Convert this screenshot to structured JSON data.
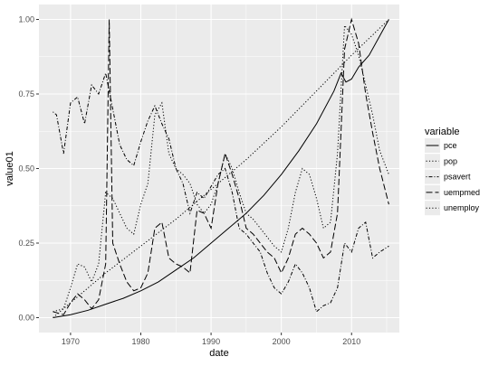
{
  "chart_data": {
    "type": "line",
    "title": "",
    "xlabel": "date",
    "ylabel": "value01",
    "xlim": [
      1965.5,
      2016.8
    ],
    "ylim": [
      -0.05,
      1.05
    ],
    "x_ticks": [
      1970,
      1980,
      1990,
      2000,
      2010
    ],
    "x_tick_labels": [
      "1970",
      "1980",
      "1990",
      "2000",
      "2010"
    ],
    "y_ticks": [
      0,
      0.25,
      0.5,
      0.75,
      1
    ],
    "y_tick_labels": [
      "0.00",
      "0.25",
      "0.50",
      "0.75",
      "1.00"
    ],
    "grid": true,
    "legend_position": "right",
    "legend_title": "variable",
    "colors": {
      "panel": "#ebebeb",
      "grid": "#ffffff",
      "line": "#000000",
      "text": "#4d4d4d"
    },
    "series": [
      {
        "name": "pce",
        "dash": "solid",
        "x": [
          1967.5,
          1970,
          1972.5,
          1975,
          1977.5,
          1980,
          1982.5,
          1985,
          1987.5,
          1990,
          1992.5,
          1995,
          1997.5,
          2000,
          2002.5,
          2005,
          2007.5,
          2008.5,
          2009.2,
          2010,
          2011,
          2012.5,
          2015.3
        ],
        "y": [
          0.0,
          0.01,
          0.025,
          0.045,
          0.065,
          0.09,
          0.12,
          0.16,
          0.2,
          0.25,
          0.3,
          0.35,
          0.41,
          0.48,
          0.56,
          0.65,
          0.76,
          0.82,
          0.79,
          0.8,
          0.84,
          0.88,
          1.0
        ]
      },
      {
        "name": "pop",
        "dash": "dotted",
        "x": [
          1967.5,
          1970,
          1975,
          1980,
          1985,
          1990,
          1995,
          2000,
          2005,
          2010,
          2015.3
        ],
        "y": [
          0.0,
          0.05,
          0.15,
          0.24,
          0.33,
          0.43,
          0.53,
          0.64,
          0.76,
          0.88,
          1.0
        ]
      },
      {
        "name": "psavert",
        "dash": "dotdash",
        "x": [
          1967.5,
          1968,
          1969,
          1970,
          1971,
          1972,
          1973,
          1974,
          1975,
          1976,
          1977,
          1978,
          1979,
          1980,
          1981,
          1982,
          1983,
          1984,
          1985,
          1986,
          1987,
          1988,
          1989,
          1990,
          1991,
          1992,
          1993,
          1994,
          1995,
          1996,
          1997,
          1998,
          1999,
          2000,
          2001,
          2002,
          2003,
          2004,
          2005,
          2006,
          2007,
          2008,
          2009,
          2010,
          2011,
          2012,
          2013,
          2014,
          2015.3
        ],
        "y": [
          0.69,
          0.68,
          0.55,
          0.72,
          0.74,
          0.65,
          0.78,
          0.75,
          0.82,
          0.7,
          0.58,
          0.53,
          0.51,
          0.59,
          0.66,
          0.71,
          0.65,
          0.6,
          0.5,
          0.45,
          0.35,
          0.42,
          0.4,
          0.44,
          0.48,
          0.5,
          0.42,
          0.3,
          0.28,
          0.25,
          0.22,
          0.15,
          0.1,
          0.08,
          0.12,
          0.18,
          0.15,
          0.1,
          0.02,
          0.04,
          0.05,
          0.1,
          0.25,
          0.22,
          0.3,
          0.32,
          0.2,
          0.22,
          0.24
        ]
      },
      {
        "name": "uempmed",
        "dash": "longdash",
        "x": [
          1967.5,
          1969,
          1970,
          1971,
          1972,
          1973,
          1974,
          1975,
          1975.5,
          1976,
          1977,
          1978,
          1979,
          1980,
          1981,
          1982,
          1983,
          1984,
          1985,
          1986,
          1987,
          1988,
          1989,
          1990,
          1991,
          1992,
          1993,
          1994,
          1995,
          1996,
          1997,
          1998,
          1999,
          2000,
          2001,
          2002,
          2003,
          2004,
          2005,
          2006,
          2007,
          2008,
          2009,
          2010,
          2011,
          2012,
          2013,
          2014,
          2015.3
        ],
        "y": [
          0.02,
          0.01,
          0.05,
          0.08,
          0.06,
          0.03,
          0.06,
          0.18,
          1.0,
          0.25,
          0.18,
          0.12,
          0.09,
          0.1,
          0.15,
          0.3,
          0.32,
          0.2,
          0.18,
          0.17,
          0.15,
          0.36,
          0.35,
          0.3,
          0.45,
          0.55,
          0.48,
          0.4,
          0.3,
          0.28,
          0.25,
          0.22,
          0.2,
          0.15,
          0.2,
          0.28,
          0.3,
          0.28,
          0.25,
          0.2,
          0.22,
          0.35,
          0.9,
          1.0,
          0.92,
          0.75,
          0.62,
          0.5,
          0.38
        ]
      },
      {
        "name": "unemploy",
        "dash": "dotted",
        "x": [
          1967.5,
          1969,
          1970,
          1971,
          1972,
          1973,
          1974,
          1975,
          1976,
          1977,
          1978,
          1979,
          1980,
          1981,
          1982,
          1983,
          1984,
          1985,
          1986,
          1987,
          1988,
          1989,
          1990,
          1991,
          1992,
          1993,
          1994,
          1995,
          1996,
          1997,
          1998,
          1999,
          2000,
          2001,
          2002,
          2003,
          2004,
          2005,
          2006,
          2007,
          2008,
          2009,
          2010,
          2011,
          2012,
          2013,
          2014,
          2015.3
        ],
        "y": [
          0.02,
          0.03,
          0.1,
          0.18,
          0.17,
          0.12,
          0.18,
          0.42,
          0.4,
          0.35,
          0.3,
          0.28,
          0.38,
          0.45,
          0.68,
          0.72,
          0.55,
          0.5,
          0.48,
          0.45,
          0.38,
          0.35,
          0.38,
          0.45,
          0.55,
          0.5,
          0.42,
          0.35,
          0.33,
          0.3,
          0.27,
          0.24,
          0.22,
          0.3,
          0.42,
          0.5,
          0.48,
          0.4,
          0.3,
          0.32,
          0.55,
          0.98,
          0.95,
          0.88,
          0.78,
          0.68,
          0.56,
          0.48
        ]
      }
    ]
  }
}
